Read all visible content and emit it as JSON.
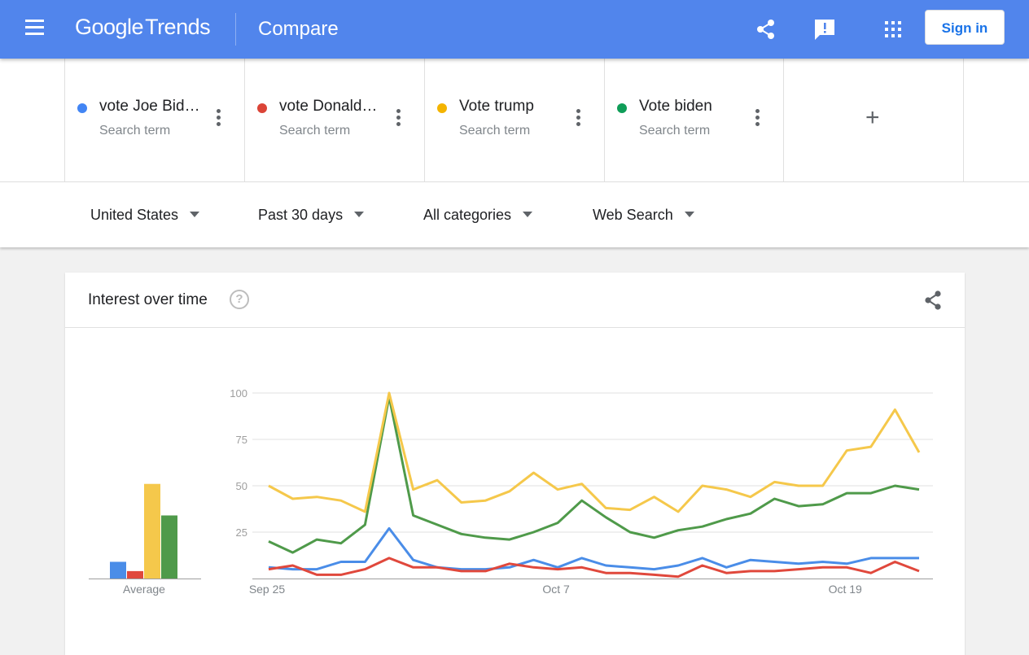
{
  "header": {
    "logo_google": "Google",
    "logo_trends": "Trends",
    "title": "Compare",
    "signin_label": "Sign in",
    "icons": [
      "menu-icon",
      "share-icon",
      "feedback-icon",
      "apps-icon"
    ]
  },
  "terms": [
    {
      "label": "vote Joe Bid…",
      "sub": "Search term",
      "color": "#4285f4"
    },
    {
      "label": "vote Donald…",
      "sub": "Search term",
      "color": "#db4437"
    },
    {
      "label": "Vote trump",
      "sub": "Search term",
      "color": "#f4b400"
    },
    {
      "label": "Vote biden",
      "sub": "Search term",
      "color": "#0f9d58"
    }
  ],
  "add_term_symbol": "+",
  "filters": {
    "region": "United States",
    "period": "Past 30 days",
    "category": "All categories",
    "property": "Web Search"
  },
  "card": {
    "title": "Interest over time",
    "help_symbol": "?"
  },
  "chart_data": [
    {
      "type": "bar",
      "xlabel": "Average",
      "series": [
        {
          "name": "vote Joe Bid…",
          "color": "#4a8de8",
          "value": 9
        },
        {
          "name": "vote Donald…",
          "color": "#e0483c",
          "value": 4
        },
        {
          "name": "Vote trump",
          "color": "#f5c84b",
          "value": 51
        },
        {
          "name": "Vote biden",
          "color": "#4f9a4a",
          "value": 34
        }
      ],
      "ylim": [
        0,
        100
      ]
    },
    {
      "type": "line",
      "yticks": [
        25,
        50,
        75,
        100
      ],
      "ylim": [
        0,
        100
      ],
      "xtick_labels": [
        {
          "index": 0,
          "label": "Sep 25"
        },
        {
          "index": 12,
          "label": "Oct 7"
        },
        {
          "index": 24,
          "label": "Oct 19"
        }
      ],
      "series": [
        {
          "name": "vote Joe Bid…",
          "color": "#4a8de8",
          "values": [
            6,
            5,
            5,
            9,
            9,
            27,
            10,
            6,
            5,
            5,
            6,
            10,
            6,
            11,
            7,
            6,
            5,
            7,
            11,
            6,
            10,
            9,
            8,
            9,
            8,
            11,
            11,
            11
          ]
        },
        {
          "name": "vote Donald…",
          "color": "#e0483c",
          "values": [
            5,
            7,
            2,
            2,
            5,
            11,
            6,
            6,
            4,
            4,
            8,
            6,
            5,
            6,
            3,
            3,
            2,
            1,
            7,
            3,
            4,
            4,
            5,
            6,
            6,
            3,
            9,
            4
          ]
        },
        {
          "name": "Vote trump",
          "color": "#f5c84b",
          "values": [
            50,
            43,
            44,
            42,
            36,
            100,
            48,
            53,
            41,
            42,
            47,
            57,
            48,
            51,
            38,
            37,
            44,
            36,
            50,
            48,
            44,
            52,
            50,
            50,
            69,
            71,
            91,
            68
          ]
        },
        {
          "name": "Vote biden",
          "color": "#4f9a4a",
          "values": [
            20,
            14,
            21,
            19,
            29,
            98,
            34,
            29,
            24,
            22,
            21,
            25,
            30,
            42,
            33,
            25,
            22,
            26,
            28,
            32,
            35,
            43,
            39,
            40,
            46,
            46,
            50,
            48
          ]
        }
      ]
    }
  ]
}
